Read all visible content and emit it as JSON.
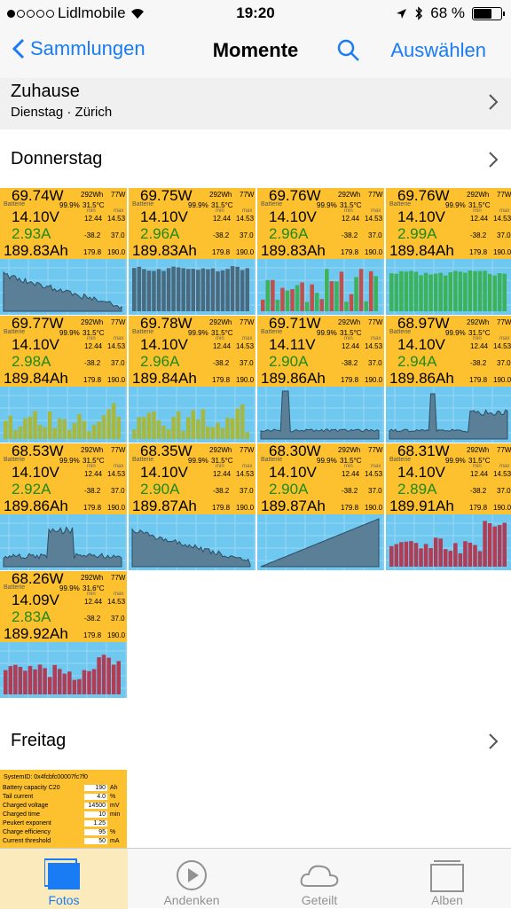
{
  "status": {
    "carrier": "Lidlmobile",
    "time": "19:20",
    "battery": "68 %",
    "battery_level": 0.68
  },
  "nav": {
    "back_label": "Sammlungen",
    "title": "Momente",
    "select_label": "Auswählen"
  },
  "zuhause": {
    "title": "Zuhause",
    "subtitle": "Dienstag · Zürich"
  },
  "sections": {
    "donnerstag": "Donnerstag",
    "freitag": "Freitag"
  },
  "tile_labels": {
    "wh": "292Wh",
    "w": "77W",
    "battery": "Batterie",
    "pct": "99.9%",
    "min": "min",
    "max": "max",
    "vmin": "12.44",
    "vmax": "14.53",
    "amin": "-38.2",
    "amax": "37.0",
    "ahmin": "179.8",
    "ahmax": "190.0"
  },
  "tiles": [
    {
      "watt": "69.74W",
      "temp": "31.5°C",
      "volt": "14.10V",
      "amp": "2.93A",
      "ah": "189.83Ah",
      "plot": "decay"
    },
    {
      "watt": "69.75W",
      "temp": "31.5°C",
      "volt": "14.10V",
      "amp": "2.96A",
      "ah": "189.83Ah",
      "plot": "bars-dark"
    },
    {
      "watt": "69.76W",
      "temp": "31.5°C",
      "volt": "14.10V",
      "amp": "2.96A",
      "ah": "189.83Ah",
      "plot": "bars-green-red"
    },
    {
      "watt": "69.76W",
      "temp": "31.5°C",
      "volt": "14.10V",
      "amp": "2.99A",
      "ah": "189.84Ah",
      "plot": "bars-green"
    },
    {
      "watt": "69.77W",
      "temp": "31.5°C",
      "volt": "14.10V",
      "amp": "2.98A",
      "ah": "189.84Ah",
      "plot": "bars-olive"
    },
    {
      "watt": "69.78W",
      "temp": "31.5°C",
      "volt": "14.10V",
      "amp": "2.96A",
      "ah": "189.84Ah",
      "plot": "bars-olive"
    },
    {
      "watt": "69.71W",
      "temp": "31.5°C",
      "volt": "14.11V",
      "amp": "2.90A",
      "ah": "189.86Ah",
      "plot": "spike-left"
    },
    {
      "watt": "68.97W",
      "temp": "31.5°C",
      "volt": "14.10V",
      "amp": "2.94A",
      "ah": "189.86Ah",
      "plot": "spike-mid"
    },
    {
      "watt": "68.53W",
      "temp": "31.5°C",
      "volt": "14.10V",
      "amp": "2.92A",
      "ah": "189.86Ah",
      "plot": "hump"
    },
    {
      "watt": "68.35W",
      "temp": "31.5°C",
      "volt": "14.10V",
      "amp": "2.90A",
      "ah": "189.87Ah",
      "plot": "decay"
    },
    {
      "watt": "68.30W",
      "temp": "31.5°C",
      "volt": "14.10V",
      "amp": "2.90A",
      "ah": "189.87Ah",
      "plot": "ramp"
    },
    {
      "watt": "68.31W",
      "temp": "31.5°C",
      "volt": "14.10V",
      "amp": "2.89A",
      "ah": "189.91Ah",
      "plot": "bars-red"
    },
    {
      "watt": "68.26W",
      "temp": "31.6°C",
      "volt": "14.09V",
      "amp": "2.83A",
      "ah": "189.92Ah",
      "plot": "bars-red"
    }
  ],
  "settings": {
    "system_id": "SystemID: 0x4fcbfc00007fc7f0",
    "rows": [
      {
        "label": "Battery capacity C20",
        "value": "190",
        "unit": "Ah"
      },
      {
        "label": "Tail current",
        "value": "4.0",
        "unit": "%"
      },
      {
        "label": "Charged voltage",
        "value": "14500",
        "unit": "mV"
      },
      {
        "label": "Charged time",
        "value": "10",
        "unit": "min"
      },
      {
        "label": "Peukert exponent",
        "value": "1.25",
        "unit": ""
      },
      {
        "label": "Charge efficiency",
        "value": "95",
        "unit": "%"
      },
      {
        "label": "Current threshold",
        "value": "50",
        "unit": "mA"
      }
    ]
  },
  "tabs": [
    {
      "label": "Fotos",
      "icon": "photos-icon",
      "active": true
    },
    {
      "label": "Andenken",
      "icon": "memories-icon",
      "active": false
    },
    {
      "label": "Geteilt",
      "icon": "cloud-icon",
      "active": false
    },
    {
      "label": "Alben",
      "icon": "albums-icon",
      "active": false
    }
  ]
}
